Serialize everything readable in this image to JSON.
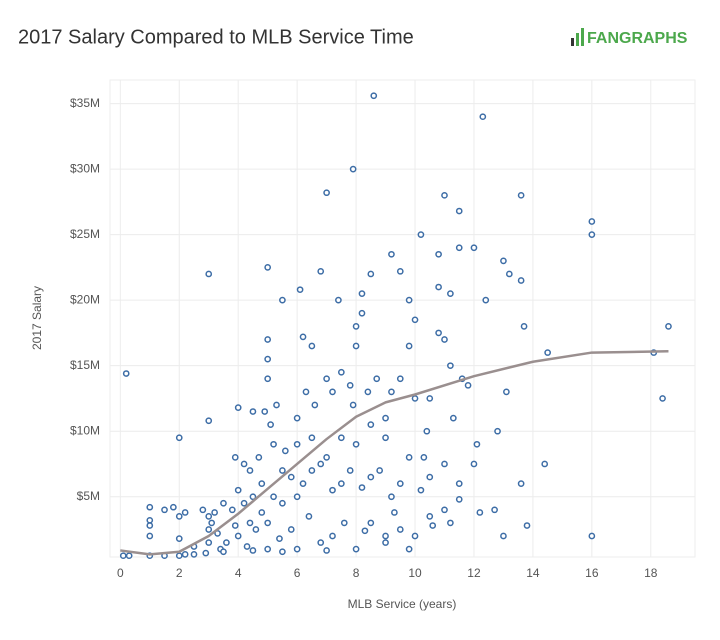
{
  "chart_data": {
    "type": "scatter",
    "title": "2017 Salary Compared to MLB Service Time",
    "logo": "FANGRAPHS",
    "x_label": "MLB Service (years)",
    "y_label": "2017 Salary",
    "xlim": [
      -0.35,
      19.5
    ],
    "ylim": [
      400000,
      36800000
    ],
    "xticks": [
      0,
      2,
      4,
      6,
      8,
      10,
      12,
      14,
      16,
      18
    ],
    "yticks": [
      {
        "value": 5000000,
        "label": "$5M"
      },
      {
        "value": 10000000,
        "label": "$10M"
      },
      {
        "value": 15000000,
        "label": "$15M"
      },
      {
        "value": 20000000,
        "label": "$20M"
      },
      {
        "value": 25000000,
        "label": "$25M"
      },
      {
        "value": 30000000,
        "label": "$30M"
      },
      {
        "value": 35000000,
        "label": "$35M"
      }
    ],
    "grid": true,
    "color": "#3d6da6",
    "x": [
      0.2,
      2,
      3,
      3,
      8.6,
      12.3,
      7.9,
      7,
      11,
      13.6,
      11.5,
      10.2,
      16,
      16,
      11.5,
      12,
      9.2,
      10.8,
      13,
      5,
      6.8,
      8.5,
      9.5,
      13.2,
      13.6,
      8.2,
      9.8,
      10.8,
      11.2,
      12.4,
      5.5,
      6.1,
      7.4,
      18.6,
      18.1,
      18.4,
      14.5,
      13.7,
      16,
      13.8,
      14.4,
      13.6,
      12.8,
      13.1,
      12.1,
      12.2,
      12.7,
      13,
      1,
      1,
      1,
      1,
      1.5,
      1.8,
      2,
      2.2,
      2,
      2.5,
      2.8,
      3,
      3,
      5,
      5,
      5,
      4.9,
      5.3,
      5.1,
      4,
      4.5,
      3.9,
      4.2,
      4.4,
      4.7,
      5.2,
      5.6,
      6,
      6.2,
      6.5,
      6.3,
      6.6,
      7,
      7.2,
      7.5,
      7.8,
      8,
      8,
      8.2,
      7.9,
      8.4,
      8.7,
      9,
      9.2,
      9.5,
      9.8,
      10,
      10,
      10.5,
      10.8,
      11,
      11.2,
      11.6,
      11.8,
      11.3,
      10.4,
      10.3,
      9.8,
      9.5,
      9.2,
      8.8,
      8.5,
      8.2,
      7.8,
      7.5,
      7.2,
      7,
      6.8,
      6.5,
      6.2,
      6,
      5.8,
      5.5,
      5.2,
      4.8,
      4.5,
      4.2,
      4,
      3.8,
      3.5,
      3.2,
      3.1,
      3.3,
      3.6,
      4,
      4.3,
      4.6,
      5,
      5.4,
      5.8,
      6,
      6.4,
      6.8,
      7.2,
      7.6,
      8,
      8.5,
      9,
      9.5,
      9.8,
      10,
      10.5,
      11,
      11.5,
      11,
      10.5,
      12,
      11.5,
      10.2,
      9,
      8.5,
      8,
      7.5,
      6.5,
      6,
      5.5,
      4.8,
      4.4,
      3.9,
      3.4,
      2.9,
      2.5,
      2,
      1.5,
      1,
      0.1,
      0.3,
      2.2,
      3,
      3.5,
      4.5,
      5,
      5.5,
      7,
      9,
      8.3,
      9.3,
      10.6,
      11.2
    ],
    "values": [
      14400000,
      9500000,
      10800000,
      22000000,
      35600000,
      34000000,
      30000000,
      28200000,
      28000000,
      28000000,
      26800000,
      25000000,
      26000000,
      25000000,
      24000000,
      24000000,
      23500000,
      23500000,
      23000000,
      22500000,
      22200000,
      22000000,
      22200000,
      22000000,
      21500000,
      20500000,
      20000000,
      21000000,
      20500000,
      20000000,
      20000000,
      20800000,
      20000000,
      18000000,
      16000000,
      12500000,
      16000000,
      18000000,
      2000000,
      2800000,
      7500000,
      6000000,
      10000000,
      13000000,
      9000000,
      3800000,
      4000000,
      2000000,
      4200000,
      3200000,
      2800000,
      2000000,
      4000000,
      4200000,
      3500000,
      3800000,
      1800000,
      1200000,
      4000000,
      3500000,
      2500000,
      17000000,
      15500000,
      14000000,
      11500000,
      12000000,
      10500000,
      11800000,
      11500000,
      8000000,
      7500000,
      7000000,
      8000000,
      9000000,
      8500000,
      11000000,
      17200000,
      16500000,
      13000000,
      12000000,
      14000000,
      13000000,
      14500000,
      13500000,
      16500000,
      18000000,
      19000000,
      12000000,
      13000000,
      14000000,
      11000000,
      13000000,
      14000000,
      16500000,
      18500000,
      12500000,
      12500000,
      17500000,
      17000000,
      15000000,
      14000000,
      13500000,
      11000000,
      10000000,
      8000000,
      8000000,
      6000000,
      5000000,
      7000000,
      6500000,
      5700000,
      7000000,
      6000000,
      5500000,
      8000000,
      7500000,
      7000000,
      6000000,
      5000000,
      6500000,
      4500000,
      5000000,
      6000000,
      5000000,
      4500000,
      5500000,
      4000000,
      4500000,
      3800000,
      3000000,
      2200000,
      1500000,
      2000000,
      1200000,
      2500000,
      3000000,
      1800000,
      2500000,
      1000000,
      3500000,
      1500000,
      2000000,
      3000000,
      1000000,
      3000000,
      1500000,
      2500000,
      1000000,
      2000000,
      3500000,
      4000000,
      6000000,
      7500000,
      6500000,
      7500000,
      4800000,
      5500000,
      9500000,
      10500000,
      9000000,
      9500000,
      9500000,
      9000000,
      7000000,
      3800000,
      3000000,
      2800000,
      1000000,
      700000,
      600000,
      500000,
      500000,
      500000,
      500000,
      500000,
      600000,
      1500000,
      800000,
      900000,
      1000000,
      800000,
      900000,
      2000000,
      2400000,
      3800000,
      2800000,
      3000000
    ],
    "trend": {
      "color": "#9a8f8f",
      "x": [
        0,
        1,
        2,
        3,
        4,
        5,
        6,
        7,
        8,
        9,
        10,
        12,
        14,
        16,
        18.6
      ],
      "values": [
        900000,
        600000,
        800000,
        2000000,
        3700000,
        5600000,
        7500000,
        9400000,
        11100000,
        12200000,
        12800000,
        14200000,
        15300000,
        16000000,
        16100000
      ]
    }
  }
}
